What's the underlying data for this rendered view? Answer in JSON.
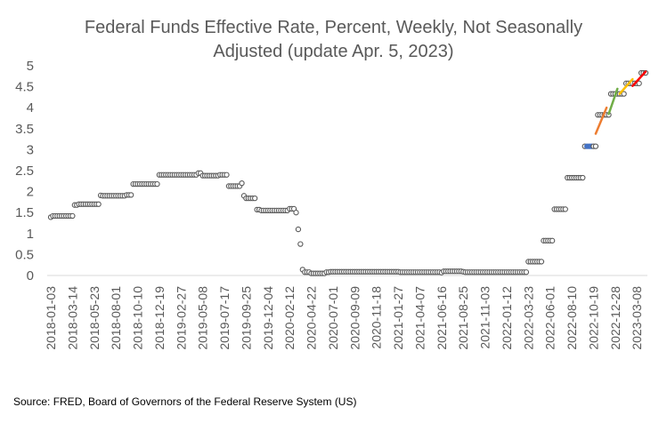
{
  "chart_data": {
    "type": "scatter",
    "title_line1": "Federal Funds Effective Rate, Percent, Weekly, Not Seasonally",
    "title_line2": "Adjusted (update Apr. 5, 2023)",
    "source": "Source: FRED, Board of Governors of the Federal Reserve System (US)",
    "ylim": [
      0,
      5
    ],
    "yticks": [
      "0",
      "0.5",
      "1",
      "1.5",
      "2",
      "2.5",
      "3",
      "3.5",
      "4",
      "4.5",
      "5"
    ],
    "x_start": "2018-01-03",
    "x_end": "2023-04-05",
    "xticks": [
      "2018-01-03",
      "2018-03-14",
      "2018-05-23",
      "2018-08-01",
      "2018-10-10",
      "2018-12-19",
      "2019-02-27",
      "2019-05-08",
      "2019-07-17",
      "2019-09-25",
      "2019-12-04",
      "2020-02-12",
      "2020-04-22",
      "2020-07-01",
      "2020-09-09",
      "2020-11-18",
      "2021-01-27",
      "2021-04-07",
      "2021-06-16",
      "2021-08-25",
      "2021-11-03",
      "2022-01-12",
      "2022-03-23",
      "2022-06-01",
      "2022-08-10",
      "2022-10-19",
      "2022-12-28",
      "2023-03-08"
    ],
    "marker_color": "#595959",
    "highlight_color": "#4472C4",
    "grid": false,
    "legend": "none",
    "series": [
      {
        "steps": [
          [
            "2018-01-03",
            1.39
          ],
          [
            "2018-01-10",
            1.42
          ],
          [
            "2018-02-07",
            1.42
          ],
          [
            "2018-03-21",
            1.68
          ],
          [
            "2018-04-04",
            1.7
          ],
          [
            "2018-06-13",
            1.91
          ],
          [
            "2018-06-20",
            1.9
          ],
          [
            "2018-09-05",
            1.92
          ],
          [
            "2018-09-26",
            2.18
          ],
          [
            "2018-12-19",
            2.4
          ],
          [
            "2019-04-24",
            2.44
          ],
          [
            "2019-05-08",
            2.38
          ],
          [
            "2019-07-03",
            2.4
          ],
          [
            "2019-07-31",
            2.13
          ],
          [
            "2019-09-11",
            2.2
          ],
          [
            "2019-09-18",
            1.9
          ],
          [
            "2019-09-25",
            1.84
          ],
          [
            "2019-10-30",
            1.57
          ],
          [
            "2019-11-13",
            1.55
          ],
          [
            "2020-02-12",
            1.59
          ],
          [
            "2020-03-04",
            1.5
          ],
          [
            "2020-03-11",
            1.1
          ],
          [
            "2020-03-18",
            0.75
          ],
          [
            "2020-03-25",
            0.14
          ],
          [
            "2020-04-01",
            0.08
          ],
          [
            "2020-04-22",
            0.05
          ],
          [
            "2020-06-10",
            0.08
          ],
          [
            "2020-06-24",
            0.09
          ],
          [
            "2021-01-06",
            0.09
          ],
          [
            "2021-02-03",
            0.08
          ],
          [
            "2021-06-16",
            0.07
          ],
          [
            "2021-06-23",
            0.1
          ],
          [
            "2021-08-25",
            0.09
          ],
          [
            "2021-09-01",
            0.08
          ],
          [
            "2022-03-16",
            0.08
          ],
          [
            "2022-03-23",
            0.33
          ],
          [
            "2022-05-11",
            0.83
          ],
          [
            "2022-06-15",
            1.58
          ],
          [
            "2022-07-27",
            2.33
          ],
          [
            "2022-09-21",
            3.08
          ],
          [
            "2022-11-02",
            3.83
          ],
          [
            "2022-12-14",
            4.33
          ],
          [
            "2023-02-01",
            4.58
          ],
          [
            "2023-03-22",
            4.83
          ]
        ],
        "end": "2023-04-05"
      }
    ],
    "highlight_points": [
      [
        "2022-09-28",
        3.08
      ],
      [
        "2022-10-05",
        3.08
      ],
      [
        "2022-10-12",
        3.08
      ]
    ],
    "trend_segments": [
      {
        "color": "#ED7D31",
        "from": [
          "2022-10-26",
          3.38
        ],
        "to": [
          "2022-11-30",
          4.0
        ]
      },
      {
        "color": "#70AD47",
        "from": [
          "2022-12-07",
          3.85
        ],
        "to": [
          "2023-01-04",
          4.45
        ]
      },
      {
        "color": "#FFC000",
        "from": [
          "2023-01-11",
          4.33
        ],
        "to": [
          "2023-02-22",
          4.68
        ]
      },
      {
        "color": "#FF0000",
        "from": [
          "2023-02-22",
          4.52
        ],
        "to": [
          "2023-04-05",
          4.86
        ]
      }
    ]
  }
}
